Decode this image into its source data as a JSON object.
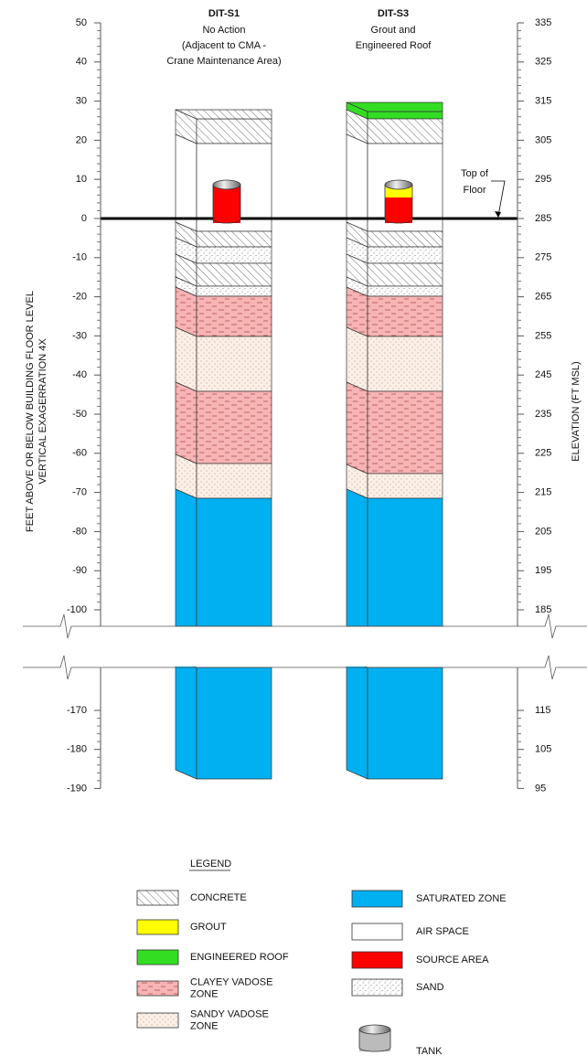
{
  "axis_left": {
    "title": [
      "FEET ABOVE OR BELOW BUILDING FLOOR LEVEL",
      "VERTICAL EXAGERRATION 4X"
    ],
    "ticks": [
      50,
      40,
      30,
      20,
      10,
      0,
      -10,
      -20,
      -30,
      -40,
      -50,
      -60,
      -70,
      -80,
      -90,
      -100,
      -170,
      -180,
      -190
    ]
  },
  "axis_right": {
    "title": "ELEVATION (FT MSL)",
    "ticks": [
      335,
      325,
      315,
      305,
      295,
      285,
      275,
      265,
      255,
      245,
      235,
      225,
      215,
      205,
      195,
      185,
      115,
      105,
      95
    ]
  },
  "columns": [
    {
      "id": "DIT-S1",
      "lines": [
        "No Action",
        "(Adjacent to CMA -",
        "Crane Maintenance Area)"
      ]
    },
    {
      "id": "DIT-S3",
      "lines": [
        "Grout and",
        "Engineered Roof"
      ]
    }
  ],
  "annotation": [
    "Top of",
    "Floor"
  ],
  "legend": {
    "title": "LEGEND",
    "left": [
      [
        "CONCRETE"
      ],
      [
        "GROUT"
      ],
      [
        "ENGINEERED ROOF"
      ],
      [
        "CLAYEY VADOSE",
        "ZONE"
      ],
      [
        "SANDY VADOSE",
        "ZONE"
      ]
    ],
    "right": [
      [
        "SATURATED ZONE"
      ],
      [
        "AIR SPACE"
      ],
      [
        "SOURCE AREA"
      ],
      [
        "SAND"
      ],
      [
        "TANK"
      ]
    ]
  }
}
